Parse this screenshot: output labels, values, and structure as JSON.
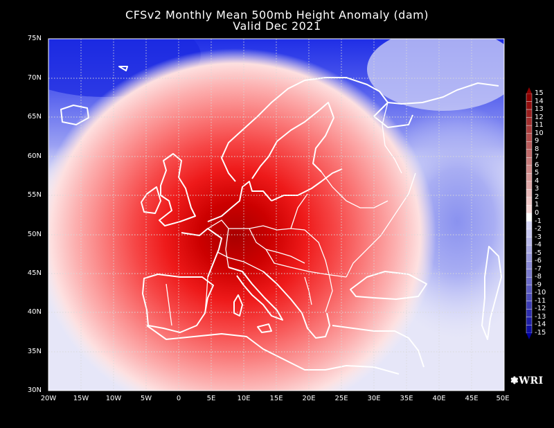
{
  "title": {
    "line1": "CFSv2 Monthly Mean 500mb Height Anomaly (dam)",
    "line2": "Valid Dec 2021"
  },
  "axes": {
    "lat_labels": [
      "75N",
      "70N",
      "65N",
      "60N",
      "55N",
      "50N",
      "45N",
      "40N",
      "35N",
      "30N"
    ],
    "lon_labels": [
      "20W",
      "15W",
      "10W",
      "5W",
      "0",
      "5E",
      "10E",
      "15E",
      "20E",
      "25E",
      "30E",
      "35E",
      "40E",
      "45E",
      "50E"
    ],
    "lat_range": [
      30,
      75
    ],
    "lon_range": [
      -20,
      50
    ],
    "grid": true
  },
  "colorbar": {
    "labels": [
      "15",
      "14",
      "13",
      "12",
      "11",
      "10",
      "9",
      "8",
      "7",
      "6",
      "5",
      "4",
      "3",
      "2",
      "1",
      "0",
      "-1",
      "-2",
      "-3",
      "-4",
      "-5",
      "-6",
      "-7",
      "-8",
      "-9",
      "-10",
      "-11",
      "-12",
      "-13",
      "-14",
      "-15"
    ]
  },
  "logo": {
    "text": "WRI"
  }
}
